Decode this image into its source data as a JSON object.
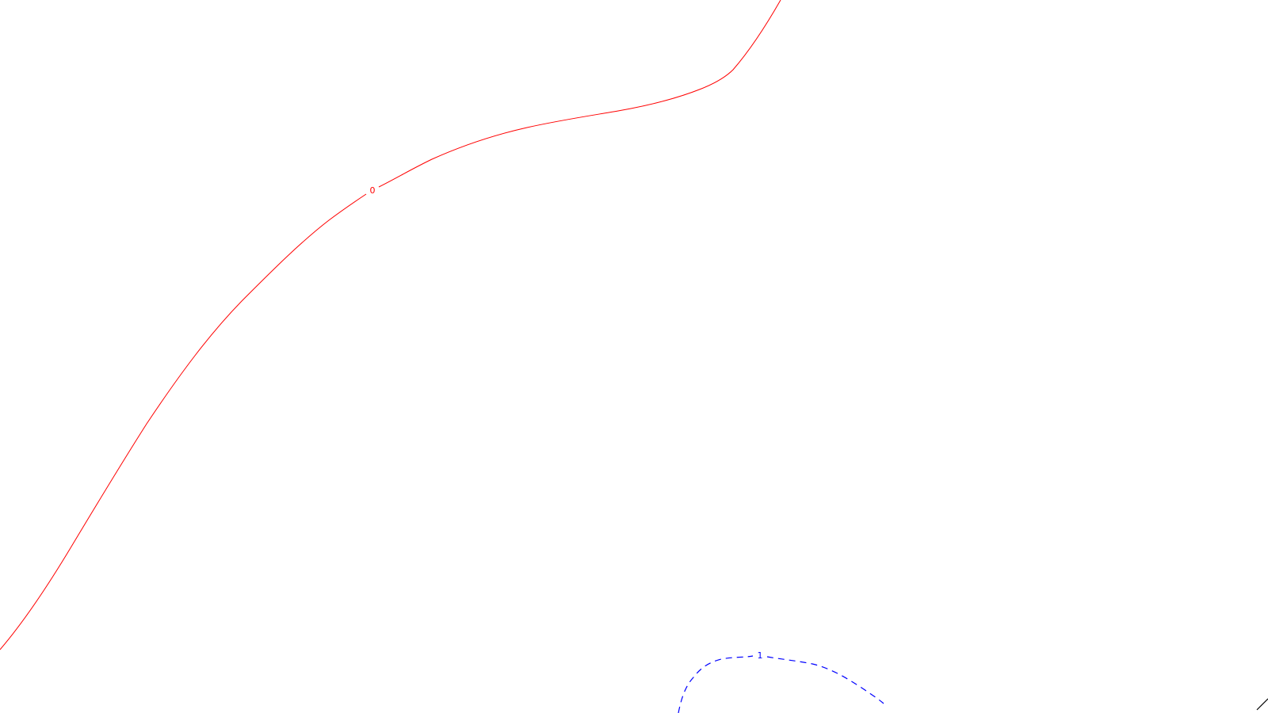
{
  "contours": [
    {
      "level_label": "0",
      "color": "#ff0000",
      "line_style": "solid"
    },
    {
      "level_label": "1",
      "color": "#0000ff",
      "line_style": "dashed"
    }
  ],
  "edge_mark": {
    "color": "#000000"
  }
}
